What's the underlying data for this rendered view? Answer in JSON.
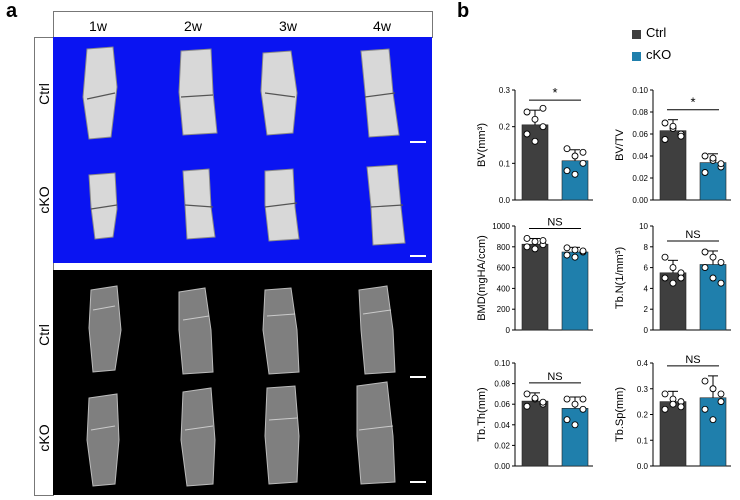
{
  "panel_a": {
    "letter": "a",
    "weeks": [
      "1w",
      "2w",
      "3w",
      "4w"
    ],
    "ct_rows": [
      "Ctrl",
      "cKO"
    ],
    "xray_rows": [
      "Ctrl",
      "cKO"
    ]
  },
  "panel_b": {
    "letter": "b",
    "legend": [
      {
        "label": "Ctrl",
        "color": "#3f3f3f"
      },
      {
        "label": "cKO",
        "color": "#1f7fac"
      }
    ]
  },
  "chart_data": [
    {
      "type": "bar",
      "ylabel": "BV(mm³)",
      "categories": [
        "Ctrl",
        "cKO"
      ],
      "values": [
        0.205,
        0.107
      ],
      "errors": [
        0.04,
        0.03
      ],
      "ylim": [
        0,
        0.3
      ],
      "yticks": [
        "0.0",
        "0.1",
        "0.2",
        "0.3"
      ],
      "significance": "*",
      "points": [
        [
          0.24,
          0.22,
          0.2,
          0.18,
          0.16,
          0.25
        ],
        [
          0.14,
          0.12,
          0.1,
          0.08,
          0.07,
          0.13
        ]
      ]
    },
    {
      "type": "bar",
      "ylabel": "BV/TV",
      "categories": [
        "Ctrl",
        "cKO"
      ],
      "values": [
        0.063,
        0.034
      ],
      "errors": [
        0.01,
        0.008
      ],
      "ylim": [
        0,
        0.1
      ],
      "yticks": [
        "0.00",
        "0.02",
        "0.04",
        "0.06",
        "0.08",
        "0.10"
      ],
      "significance": "*",
      "points": [
        [
          0.07,
          0.065,
          0.06,
          0.055,
          0.067,
          0.058
        ],
        [
          0.04,
          0.036,
          0.03,
          0.025,
          0.038,
          0.033
        ]
      ]
    },
    {
      "type": "bar",
      "ylabel": "BMD(mgHA/ccm)",
      "categories": [
        "Ctrl",
        "cKO"
      ],
      "values": [
        825,
        750
      ],
      "errors": [
        55,
        45
      ],
      "ylim": [
        0,
        1000
      ],
      "yticks": [
        "0",
        "200",
        "400",
        "600",
        "800",
        "1000"
      ],
      "significance": "NS",
      "points": [
        [
          880,
          850,
          820,
          800,
          780,
          860
        ],
        [
          790,
          770,
          750,
          720,
          700,
          760
        ]
      ]
    },
    {
      "type": "bar",
      "ylabel": "Tb.N(1/mm³)",
      "categories": [
        "Ctrl",
        "cKO"
      ],
      "values": [
        5.5,
        6.3
      ],
      "errors": [
        1.2,
        1.3
      ],
      "ylim": [
        0,
        10
      ],
      "yticks": [
        "0",
        "2",
        "4",
        "6",
        "8",
        "10"
      ],
      "significance": "NS",
      "points": [
        [
          7,
          6,
          5.5,
          5,
          4.5,
          5
        ],
        [
          7.5,
          7,
          6.5,
          6,
          5,
          4.5
        ]
      ]
    },
    {
      "type": "bar",
      "ylabel": "Tb.Th(mm)",
      "categories": [
        "Ctrl",
        "cKO"
      ],
      "values": [
        0.063,
        0.056
      ],
      "errors": [
        0.008,
        0.011
      ],
      "ylim": [
        0,
        0.1
      ],
      "yticks": [
        "0.00",
        "0.02",
        "0.04",
        "0.06",
        "0.08",
        "0.10"
      ],
      "significance": "NS",
      "points": [
        [
          0.07,
          0.065,
          0.06,
          0.058,
          0.066,
          0.062
        ],
        [
          0.065,
          0.06,
          0.055,
          0.045,
          0.04,
          0.065
        ]
      ]
    },
    {
      "type": "bar",
      "ylabel": "Tb.Sp(mm)",
      "categories": [
        "Ctrl",
        "cKO"
      ],
      "values": [
        0.25,
        0.265
      ],
      "errors": [
        0.04,
        0.085
      ],
      "ylim": [
        0,
        0.4
      ],
      "yticks": [
        "0.0",
        "0.1",
        "0.2",
        "0.3",
        "0.4"
      ],
      "significance": "NS",
      "points": [
        [
          0.28,
          0.26,
          0.25,
          0.22,
          0.24,
          0.23
        ],
        [
          0.33,
          0.3,
          0.28,
          0.22,
          0.18,
          0.25
        ]
      ]
    }
  ]
}
